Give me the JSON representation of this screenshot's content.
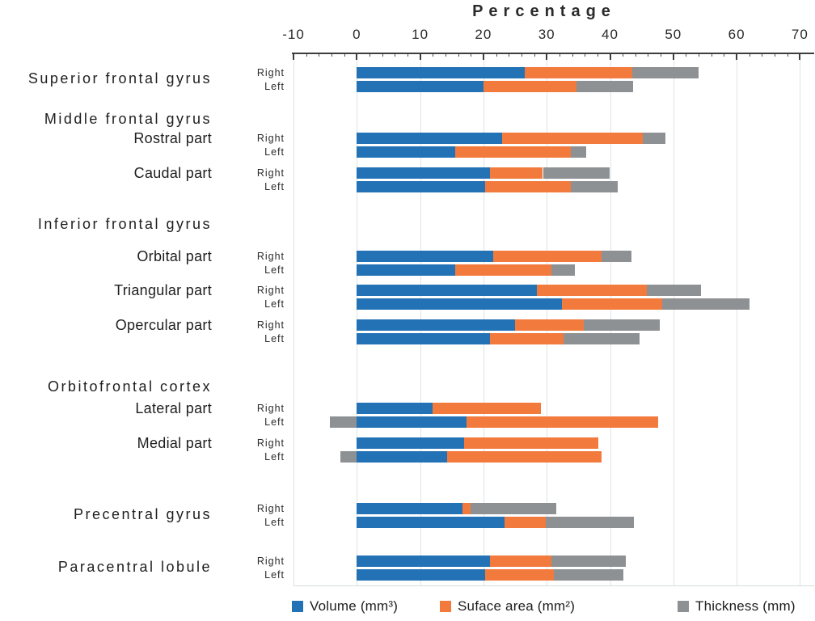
{
  "chart_data": {
    "type": "bar",
    "orientation": "horizontal",
    "stacked": true,
    "title": "Percentage",
    "axis": {
      "min": -10,
      "max": 70,
      "major_tick_step": 10,
      "minor_tick_step": 2,
      "tick_labels": [
        "-10",
        "0",
        "10",
        "20",
        "30",
        "40",
        "50",
        "60",
        "70"
      ],
      "grid": true
    },
    "legend": [
      {
        "label": "Volume (mm³)",
        "color": "#2272b5"
      },
      {
        "label": "Suface area (mm²)",
        "color": "#f27a3c"
      },
      {
        "label": "Thickness (mm)",
        "color": "#8d9194"
      }
    ],
    "series_names": [
      "Volume (mm³)",
      "Suface area (mm²)",
      "Thickness (mm)"
    ],
    "groups": [
      {
        "label": "Superior frontal gyrus",
        "type": "group",
        "rows": [
          {
            "side": "Right",
            "volume": 26.5,
            "surface": 17.0,
            "thickness": 10.5
          },
          {
            "side": "Left",
            "volume": 20.0,
            "surface": 14.7,
            "thickness": 8.9
          }
        ]
      },
      {
        "label": "Middle frontal gyrus",
        "type": "header"
      },
      {
        "label": "Rostral part",
        "type": "sub",
        "rows": [
          {
            "side": "Right",
            "volume": 23.0,
            "surface": 22.2,
            "thickness": 3.5
          },
          {
            "side": "Left",
            "volume": 15.5,
            "surface": 18.3,
            "thickness": 2.4
          }
        ]
      },
      {
        "label": "Caudal part",
        "type": "sub",
        "rows": [
          {
            "side": "Right",
            "volume": 21.0,
            "surface": 8.4,
            "thickness": 10.6
          },
          {
            "side": "Left",
            "volume": 20.3,
            "surface": 13.5,
            "thickness": 7.4
          }
        ]
      },
      {
        "label": "Inferior frontal gyrus",
        "type": "header"
      },
      {
        "label": "Orbital part",
        "type": "sub",
        "rows": [
          {
            "side": "Right",
            "volume": 21.5,
            "surface": 17.1,
            "thickness": 4.8
          },
          {
            "side": "Left",
            "volume": 15.6,
            "surface": 15.2,
            "thickness": 3.7
          }
        ]
      },
      {
        "label": "Triangular part",
        "type": "sub",
        "rows": [
          {
            "side": "Right",
            "volume": 28.5,
            "surface": 17.3,
            "thickness": 8.6
          },
          {
            "side": "Left",
            "volume": 32.4,
            "surface": 15.8,
            "thickness": 13.8
          }
        ]
      },
      {
        "label": "Opercular part",
        "type": "sub",
        "rows": [
          {
            "side": "Right",
            "volume": 25.0,
            "surface": 10.8,
            "thickness": 12.1
          },
          {
            "side": "Left",
            "volume": 21.0,
            "surface": 11.6,
            "thickness": 12.0
          }
        ]
      },
      {
        "label": "Orbitofrontal cortex",
        "type": "header"
      },
      {
        "label": "Lateral part",
        "type": "sub",
        "rows": [
          {
            "side": "Right",
            "volume": 12.0,
            "surface": 17.1,
            "thickness": 0
          },
          {
            "side": "Left",
            "volume": 17.3,
            "surface": 30.3,
            "thickness": -4.2
          }
        ]
      },
      {
        "label": "Medial part",
        "type": "sub",
        "rows": [
          {
            "side": "Right",
            "volume": 16.9,
            "surface": 21.3,
            "thickness": 0
          },
          {
            "side": "Left",
            "volume": 14.3,
            "surface": 24.4,
            "thickness": -2.6
          }
        ]
      },
      {
        "label": "Precentral gyrus",
        "type": "group",
        "rows": [
          {
            "side": "Right",
            "volume": 16.7,
            "surface": 1.3,
            "thickness": 13.5
          },
          {
            "side": "Left",
            "volume": 23.3,
            "surface": 6.6,
            "thickness": 13.9
          }
        ]
      },
      {
        "label": "Paracentral lobule",
        "type": "group",
        "rows": [
          {
            "side": "Right",
            "volume": 21.0,
            "surface": 9.8,
            "thickness": 11.7
          },
          {
            "side": "Left",
            "volume": 20.3,
            "surface": 10.8,
            "thickness": 11.0
          }
        ]
      }
    ]
  }
}
